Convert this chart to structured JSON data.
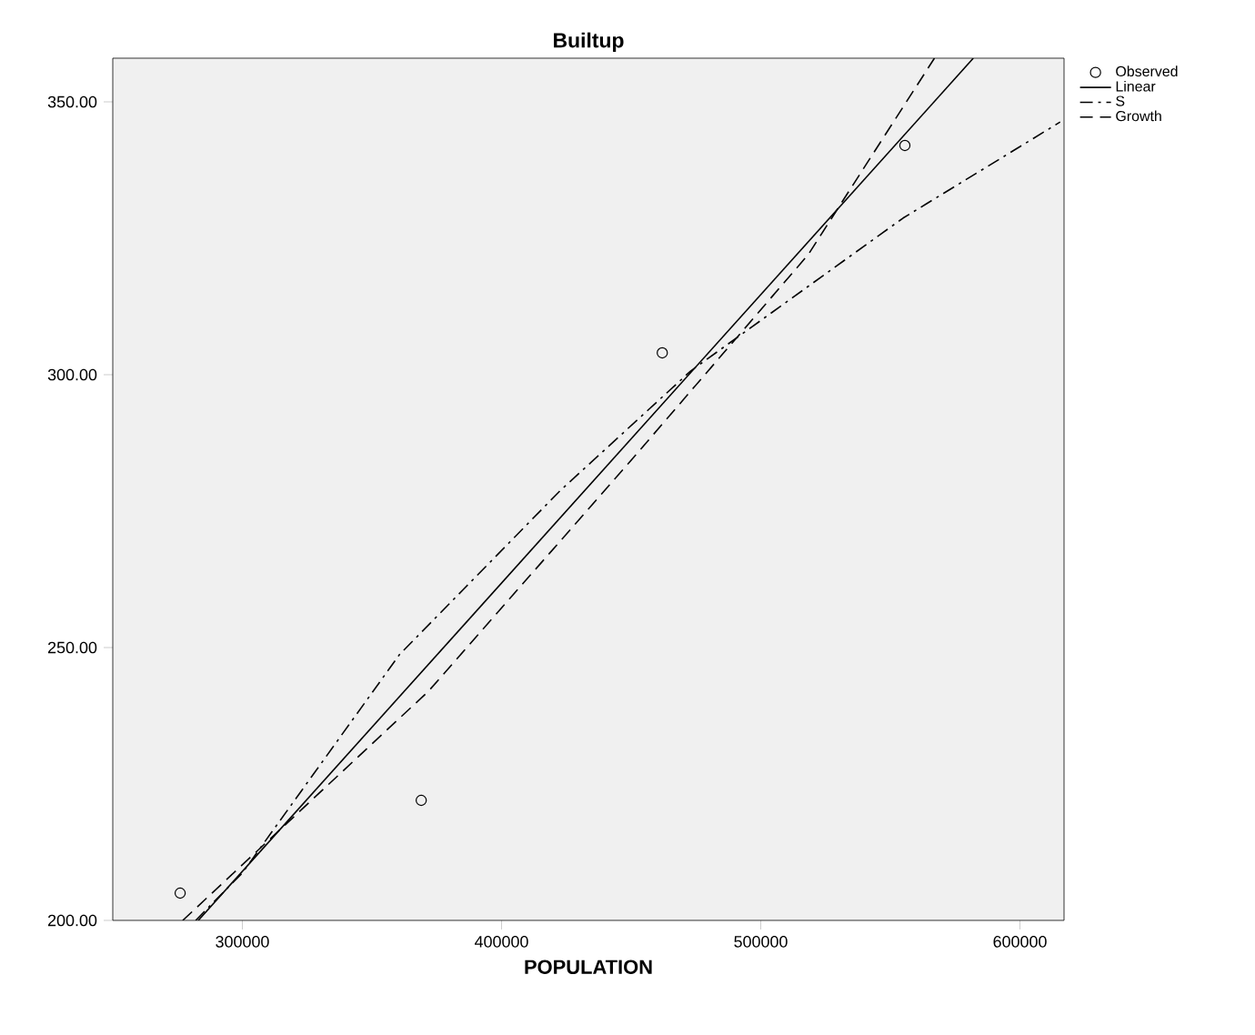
{
  "chart_data": {
    "type": "scatter",
    "title": "Builtup",
    "xlabel": "POPULATION",
    "xlim": [
      250000,
      617000
    ],
    "ylim": [
      200,
      358
    ],
    "xticks": [
      300000,
      400000,
      500000,
      600000
    ],
    "yticks": [
      {
        "value": 200,
        "label": "200.00"
      },
      {
        "value": 250,
        "label": "250.00"
      },
      {
        "value": 300,
        "label": "300.00"
      },
      {
        "value": 350,
        "label": "350.00"
      }
    ],
    "legend": "top right",
    "grid": false,
    "series": [
      {
        "name": "Observed",
        "color": "#000000",
        "marker": "circle",
        "x": [
          276000,
          369000,
          462000,
          555600
        ],
        "values": [
          205,
          222,
          304,
          342
        ]
      },
      {
        "name": "Linear",
        "type": "line",
        "color": "#000000",
        "line_style": "solid",
        "x": [
          283000,
          582000
        ],
        "values": [
          200,
          358
        ]
      },
      {
        "name": "S",
        "type": "line",
        "color": "#000000",
        "line_style": "dashdot",
        "x": [
          282000,
          300000,
          360600,
          422500,
          473000,
          554900,
          615500
        ],
        "values": [
          200,
          208.7,
          248.7,
          278.7,
          300.7,
          328.7,
          346.3
        ]
      },
      {
        "name": "Growth",
        "type": "line",
        "color": "#000000",
        "line_style": "dashed",
        "x": [
          277000,
          371800,
          450700,
          518300,
          567000
        ],
        "values": [
          200,
          242,
          284.7,
          322,
          358
        ]
      }
    ]
  }
}
